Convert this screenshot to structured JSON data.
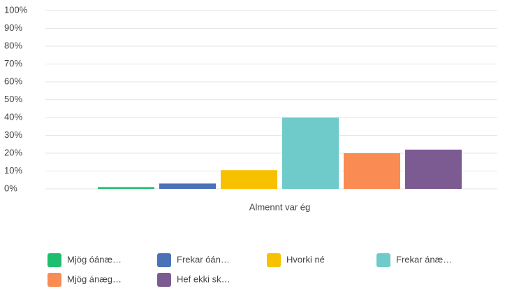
{
  "chart_data": {
    "type": "bar",
    "categories": [
      "Almennt var ég"
    ],
    "series": [
      {
        "name": "Mjög óánæ…",
        "color": "#1fbe6f",
        "values": [
          1
        ]
      },
      {
        "name": "Frekar óán…",
        "color": "#4a72b8",
        "values": [
          3
        ]
      },
      {
        "name": "Hvorki né",
        "color": "#f7c100",
        "values": [
          10.5
        ]
      },
      {
        "name": "Frekar ánæ…",
        "color": "#6ecbc9",
        "values": [
          40
        ]
      },
      {
        "name": "Mjög ánæg…",
        "color": "#f98b53",
        "values": [
          20
        ]
      },
      {
        "name": "Hef ekki sk…",
        "color": "#7c5b93",
        "values": [
          22
        ]
      }
    ],
    "ylim": [
      0,
      100
    ],
    "yticks": [
      {
        "value": 0,
        "label": "0%"
      },
      {
        "value": 10,
        "label": "10%"
      },
      {
        "value": 20,
        "label": "20%"
      },
      {
        "value": 30,
        "label": "30%"
      },
      {
        "value": 40,
        "label": "40%"
      },
      {
        "value": 50,
        "label": "50%"
      },
      {
        "value": 60,
        "label": "60%"
      },
      {
        "value": 70,
        "label": "70%"
      },
      {
        "value": 80,
        "label": "80%"
      },
      {
        "value": 90,
        "label": "90%"
      },
      {
        "value": 100,
        "label": "100%"
      }
    ],
    "grid": true
  }
}
